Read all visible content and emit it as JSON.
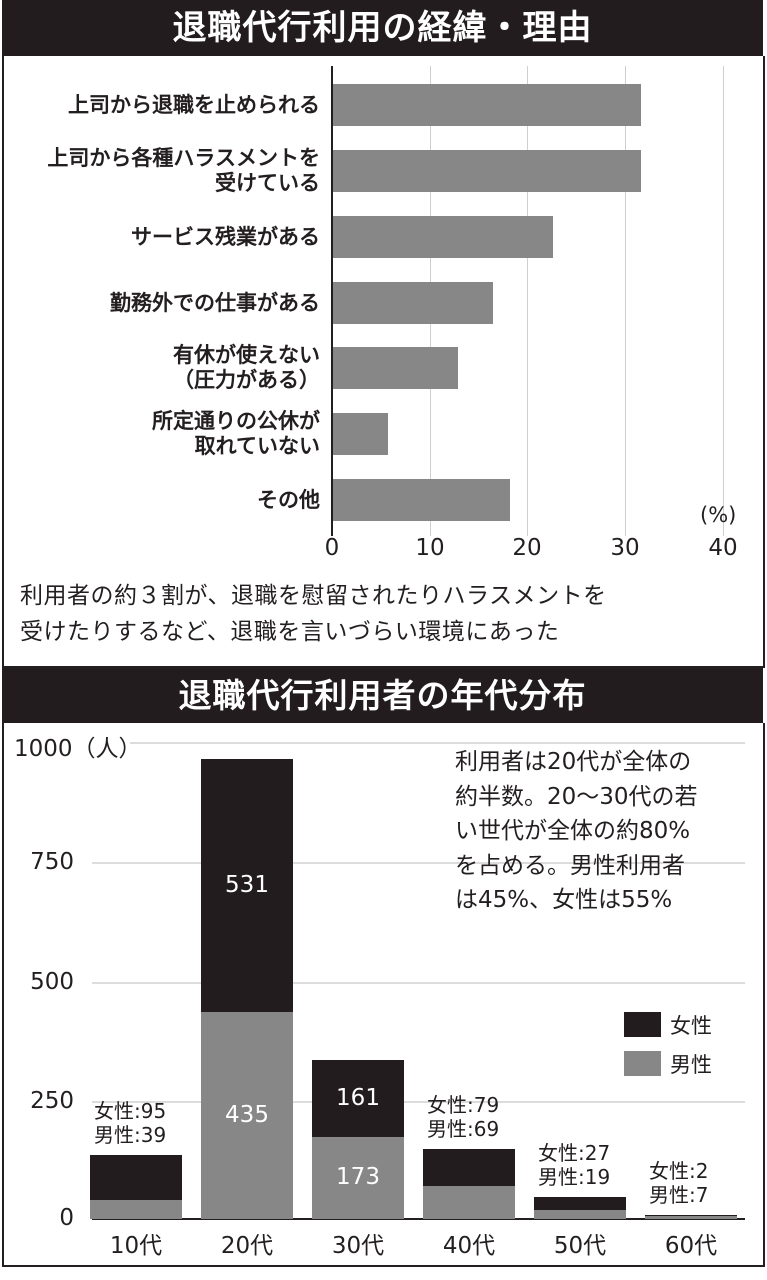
{
  "top_chart": {
    "title": "退職代行利用の経緯・理由",
    "unit": "(%)",
    "categories": [
      {
        "lines": [
          "上司から退職を止められる"
        ],
        "value": 31.5
      },
      {
        "lines": [
          "上司から各種ハラスメントを",
          "受けている"
        ],
        "value": 31.5
      },
      {
        "lines": [
          "サービス残業がある"
        ],
        "value": 22.5
      },
      {
        "lines": [
          "勤務外での仕事がある"
        ],
        "value": 16.4
      },
      {
        "lines": [
          "有休が使えない",
          "（圧力がある）"
        ],
        "value": 12.8
      },
      {
        "lines": [
          "所定通りの公休が",
          "取れていない"
        ],
        "value": 5.6
      },
      {
        "lines": [
          "その他"
        ],
        "value": 18.1
      }
    ],
    "x_ticks": [
      "0",
      "10",
      "20",
      "30",
      "40"
    ],
    "note_line1": "利用者の約３割が、退職を慰留されたりハラスメントを",
    "note_line2": "受けたりするなど、退職を言いづらい環境にあった"
  },
  "bottom_chart": {
    "title": "退職代行利用者の年代分布",
    "y_ticks": [
      "1000（人）",
      "750",
      "500",
      "250",
      "0"
    ],
    "description": [
      "利用者は20代が全体の",
      "約半数。20〜30代の若",
      "い世代が全体の約80%",
      "を占める。男性利用者",
      "は45%、女性は55%"
    ],
    "legend": {
      "female": "女性",
      "male": "男性"
    },
    "groups": [
      {
        "label": "10代",
        "female": 95,
        "male": 39,
        "top_female": "女性:95",
        "top_male": "男性:39"
      },
      {
        "label": "20代",
        "female": 531,
        "male": 435,
        "in_female": "531",
        "in_male": "435"
      },
      {
        "label": "30代",
        "female": 161,
        "male": 173,
        "in_female": "161",
        "in_male": "173"
      },
      {
        "label": "40代",
        "female": 79,
        "male": 69,
        "top_female": "女性:79",
        "top_male": "男性:69"
      },
      {
        "label": "50代",
        "female": 27,
        "male": 19,
        "top_female": "女性:27",
        "top_male": "男性:19"
      },
      {
        "label": "60代",
        "female": 2,
        "male": 7,
        "top_female": "女性:2",
        "top_male": "男性:7"
      }
    ]
  },
  "colors": {
    "dark": "#231c1e",
    "gray": "#878787",
    "grid": "#d4d4d4"
  },
  "chart_data": [
    {
      "type": "bar",
      "orientation": "horizontal",
      "title": "退職代行利用の経緯・理由",
      "categories": [
        "上司から退職を止められる",
        "上司から各種ハラスメントを受けている",
        "サービス残業がある",
        "勤務外での仕事がある",
        "有休が使えない（圧力がある）",
        "所定通りの公休が取れていない",
        "その他"
      ],
      "values": [
        31.5,
        31.5,
        22.5,
        16.4,
        12.8,
        5.6,
        18.1
      ],
      "xlabel": "(%)",
      "xlim": [
        0,
        40
      ],
      "x_ticks": [
        0,
        10,
        20,
        30,
        40
      ],
      "grid": true,
      "annotation": "利用者の約３割が、退職を慰留されたりハラスメントを受けたりするなど、退職を言いづらい環境にあった"
    },
    {
      "type": "bar",
      "stacked": true,
      "title": "退職代行利用者の年代分布",
      "categories": [
        "10代",
        "20代",
        "30代",
        "40代",
        "50代",
        "60代"
      ],
      "series": [
        {
          "name": "男性",
          "values": [
            39,
            435,
            173,
            69,
            19,
            7
          ]
        },
        {
          "name": "女性",
          "values": [
            95,
            531,
            161,
            79,
            27,
            2
          ]
        }
      ],
      "ylabel": "（人）",
      "ylim": [
        0,
        1000
      ],
      "y_ticks": [
        0,
        250,
        500,
        750,
        1000
      ],
      "grid": true,
      "legend_position": "right-middle",
      "annotation": "利用者は20代が全体の約半数。20〜30代の若い世代が全体の約80%を占める。男性利用者は45%、女性は55%"
    }
  ]
}
